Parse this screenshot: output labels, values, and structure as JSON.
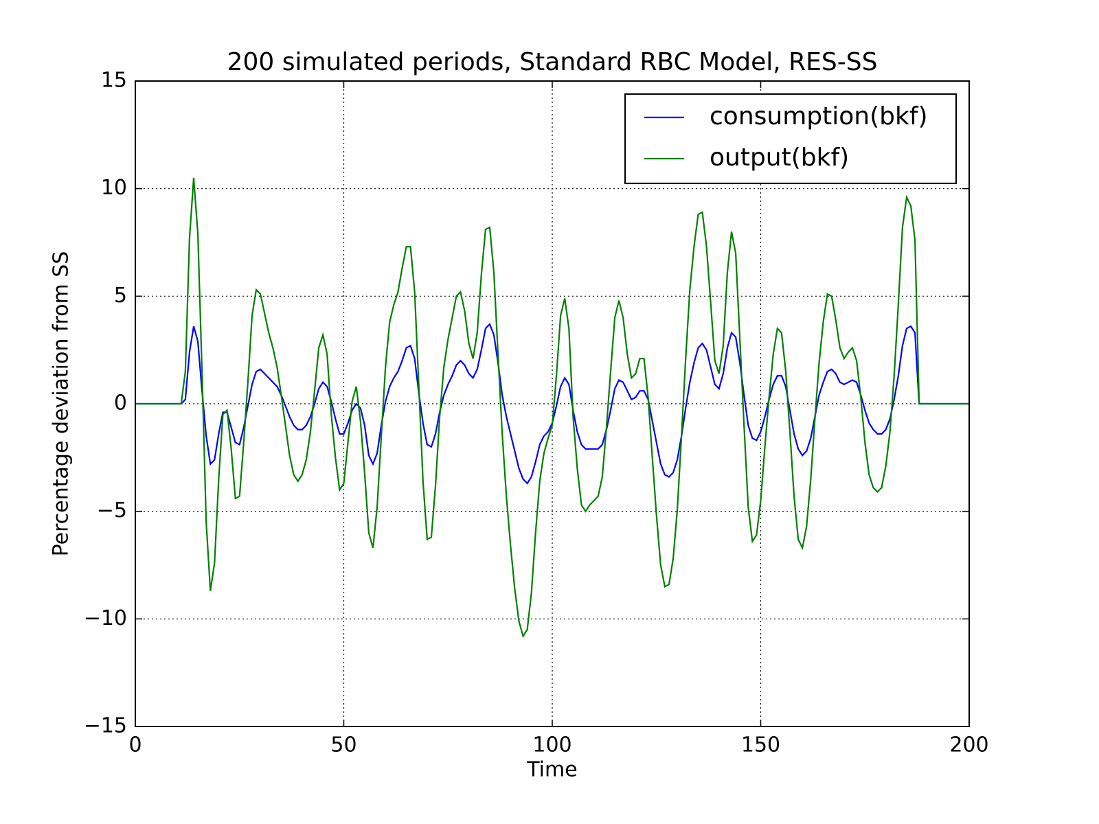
{
  "chart_data": {
    "type": "line",
    "title": "200 simulated periods, Standard RBC Model, RES-SS",
    "xlabel": "Time",
    "ylabel": "Percentage deviation from SS",
    "x": [
      0,
      1,
      2,
      3,
      4,
      5,
      6,
      7,
      8,
      9,
      10,
      11,
      12,
      13,
      14,
      15,
      16,
      17,
      18,
      19,
      20,
      21,
      22,
      23,
      24,
      25,
      26,
      27,
      28,
      29,
      30,
      31,
      32,
      33,
      34,
      35,
      36,
      37,
      38,
      39,
      40,
      41,
      42,
      43,
      44,
      45,
      46,
      47,
      48,
      49,
      50,
      51,
      52,
      53,
      54,
      55,
      56,
      57,
      58,
      59,
      60,
      61,
      62,
      63,
      64,
      65,
      66,
      67,
      68,
      69,
      70,
      71,
      72,
      73,
      74,
      75,
      76,
      77,
      78,
      79,
      80,
      81,
      82,
      83,
      84,
      85,
      86,
      87,
      88,
      89,
      90,
      91,
      92,
      93,
      94,
      95,
      96,
      97,
      98,
      99,
      100,
      101,
      102,
      103,
      104,
      105,
      106,
      107,
      108,
      109,
      110,
      111,
      112,
      113,
      114,
      115,
      116,
      117,
      118,
      119,
      120,
      121,
      122,
      123,
      124,
      125,
      126,
      127,
      128,
      129,
      130,
      131,
      132,
      133,
      134,
      135,
      136,
      137,
      138,
      139,
      140,
      141,
      142,
      143,
      144,
      145,
      146,
      147,
      148,
      149,
      150,
      151,
      152,
      153,
      154,
      155,
      156,
      157,
      158,
      159,
      160,
      161,
      162,
      163,
      164,
      165,
      166,
      167,
      168,
      169,
      170,
      171,
      172,
      173,
      174,
      175,
      176,
      177,
      178,
      179,
      180,
      181,
      182,
      183,
      184,
      185,
      186,
      187,
      188,
      189,
      190,
      191,
      192,
      193,
      194,
      195,
      196,
      197,
      198,
      199,
      200
    ],
    "series": [
      {
        "name": "consumption(bkf)",
        "color": "#0000ff",
        "values": [
          0,
          0,
          0,
          0,
          0,
          0,
          0,
          0,
          0,
          0,
          0,
          0,
          0.2,
          2.4,
          3.6,
          2.9,
          0.6,
          -1.5,
          -2.8,
          -2.6,
          -1.4,
          -0.4,
          -0.4,
          -1.1,
          -1.8,
          -1.9,
          -1.1,
          -0.1,
          0.9,
          1.5,
          1.6,
          1.4,
          1.2,
          1.0,
          0.8,
          0.4,
          -0.1,
          -0.6,
          -1.0,
          -1.2,
          -1.2,
          -1.0,
          -0.6,
          0.0,
          0.7,
          1.0,
          0.8,
          0.1,
          -0.7,
          -1.4,
          -1.4,
          -0.9,
          -0.3,
          0.0,
          -0.2,
          -1.0,
          -2.4,
          -2.8,
          -2.3,
          -1.0,
          0.1,
          0.8,
          1.2,
          1.5,
          2.0,
          2.6,
          2.7,
          2.1,
          0.5,
          -0.9,
          -1.9,
          -2.0,
          -1.4,
          -0.4,
          0.4,
          0.9,
          1.3,
          1.8,
          2.0,
          1.8,
          1.4,
          1.2,
          1.6,
          2.5,
          3.5,
          3.7,
          3.2,
          1.9,
          0.4,
          -0.6,
          -1.4,
          -2.2,
          -3.0,
          -3.5,
          -3.7,
          -3.4,
          -2.7,
          -1.9,
          -1.5,
          -1.3,
          -0.9,
          -0.1,
          0.8,
          1.2,
          0.9,
          -0.3,
          -1.3,
          -1.9,
          -2.1,
          -2.1,
          -2.1,
          -2.1,
          -1.9,
          -1.2,
          -0.3,
          0.7,
          1.1,
          1.0,
          0.6,
          0.2,
          0.3,
          0.6,
          0.6,
          0.2,
          -0.8,
          -1.8,
          -2.8,
          -3.3,
          -3.4,
          -3.2,
          -2.6,
          -1.5,
          -0.2,
          1.0,
          1.9,
          2.6,
          2.8,
          2.5,
          1.7,
          0.9,
          0.7,
          1.4,
          2.6,
          3.3,
          3.1,
          1.9,
          0.4,
          -1.0,
          -1.6,
          -1.7,
          -1.3,
          -0.6,
          0.2,
          0.9,
          1.3,
          1.3,
          0.8,
          -0.3,
          -1.4,
          -2.1,
          -2.4,
          -2.2,
          -1.6,
          -0.6,
          0.4,
          1.0,
          1.5,
          1.6,
          1.4,
          1.0,
          0.9,
          1.0,
          1.1,
          1.0,
          0.4,
          -0.3,
          -0.9,
          -1.2,
          -1.4,
          -1.4,
          -1.2,
          -0.7,
          0.2,
          1.3,
          2.7,
          3.5,
          3.6,
          3.3,
          0,
          0,
          0,
          0,
          0,
          0,
          0,
          0,
          0,
          0,
          0,
          0,
          0
        ]
      },
      {
        "name": "output(bkf)",
        "color": "#008000",
        "values": [
          0,
          0,
          0,
          0,
          0,
          0,
          0,
          0,
          0,
          0,
          0,
          0,
          1.5,
          7.7,
          10.5,
          7.9,
          1.5,
          -5.5,
          -8.7,
          -7.4,
          -3.5,
          -0.5,
          -0.3,
          -2.1,
          -4.4,
          -4.3,
          -1.8,
          1.0,
          4.1,
          5.3,
          5.1,
          4.2,
          3.3,
          2.6,
          1.7,
          0.4,
          -1.0,
          -2.4,
          -3.3,
          -3.6,
          -3.3,
          -2.6,
          -1.3,
          0.6,
          2.6,
          3.2,
          2.3,
          -0.5,
          -2.5,
          -4.0,
          -3.7,
          -1.8,
          0.1,
          0.8,
          -0.8,
          -3.2,
          -6.0,
          -6.7,
          -4.8,
          -1.5,
          1.7,
          3.8,
          4.6,
          5.2,
          6.3,
          7.3,
          7.3,
          5.2,
          0.8,
          -3.6,
          -6.3,
          -6.2,
          -3.8,
          -0.6,
          1.7,
          3.0,
          4.0,
          5.0,
          5.2,
          4.3,
          2.8,
          2.1,
          3.3,
          6.0,
          8.1,
          8.2,
          6.1,
          2.3,
          -1.4,
          -4.3,
          -6.6,
          -8.6,
          -10.1,
          -10.8,
          -10.5,
          -8.8,
          -6.0,
          -3.6,
          -2.3,
          -1.6,
          -1.0,
          1.3,
          4.1,
          4.9,
          3.5,
          -0.6,
          -3.0,
          -4.7,
          -5.0,
          -4.7,
          -4.5,
          -4.3,
          -3.4,
          -1.1,
          1.5,
          4.0,
          4.8,
          4.0,
          2.3,
          1.2,
          1.4,
          2.1,
          2.1,
          0.3,
          -2.5,
          -5.2,
          -7.5,
          -8.5,
          -8.4,
          -7.2,
          -4.9,
          -1.5,
          2.1,
          5.3,
          7.3,
          8.8,
          8.9,
          7.3,
          4.7,
          2.0,
          1.4,
          2.7,
          6.1,
          8.0,
          7.0,
          3.0,
          -1.0,
          -4.8,
          -6.4,
          -6.1,
          -4.5,
          -2.0,
          0.3,
          2.3,
          3.5,
          3.3,
          1.5,
          -1.3,
          -4.3,
          -6.3,
          -6.7,
          -5.7,
          -3.5,
          -0.7,
          1.9,
          3.8,
          5.1,
          5.0,
          3.9,
          2.6,
          2.1,
          2.4,
          2.6,
          2.0,
          0.3,
          -1.8,
          -3.3,
          -3.9,
          -4.1,
          -3.9,
          -2.9,
          -1.3,
          1.3,
          4.6,
          8.2,
          9.6,
          9.2,
          7.6,
          0,
          0,
          0,
          0,
          0,
          0,
          0,
          0,
          0,
          0,
          0,
          0,
          0
        ]
      }
    ],
    "xlim": [
      0,
      200
    ],
    "xticks": [
      0,
      50,
      100,
      150,
      200
    ],
    "ylim": [
      -15,
      15
    ],
    "yticks": [
      {
        "value": -15,
        "label": "−15"
      },
      {
        "value": -10,
        "label": "−10"
      },
      {
        "value": -5,
        "label": "−5"
      },
      0,
      5,
      10,
      15
    ],
    "grid": true,
    "legend": "upper right"
  }
}
